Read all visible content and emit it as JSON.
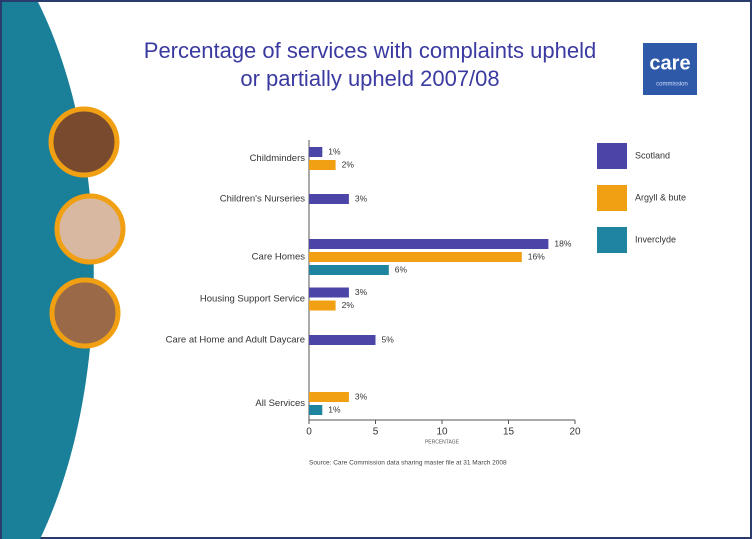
{
  "chart_data": {
    "type": "hbar",
    "title": "Percentage of services with complaints upheld or partially upheld 2007/08",
    "categories": [
      "Childminders",
      "Children's Nurseries",
      "Care Homes",
      "Housing Support Service",
      "Care at Home and Adult Daycare",
      "All Services"
    ],
    "series": [
      {
        "name": "Scotland",
        "color": "#4b45a8",
        "values": [
          1,
          3,
          18,
          3,
          5,
          null
        ],
        "value_labels": [
          "1%",
          "3%",
          "18%",
          "3%",
          "5%",
          null
        ]
      },
      {
        "name": "Argyll & bute",
        "color": "#f0a012",
        "values": [
          2,
          null,
          16,
          2,
          null,
          3
        ],
        "value_labels": [
          "2%",
          null,
          "16%",
          "2%",
          null,
          "3%"
        ]
      },
      {
        "name": "Inverclyde",
        "color": "#1e84a0",
        "values": [
          null,
          null,
          6,
          null,
          null,
          1
        ],
        "value_labels": [
          null,
          null,
          "6%",
          null,
          null,
          "1%"
        ]
      }
    ],
    "xlim": [
      0,
      20
    ],
    "xticks": [
      0,
      5,
      10,
      15,
      20
    ],
    "xlabel": "PERCENTAGE",
    "source": "Source: Care Commission data sharing master file at 31 March 2008",
    "legend": "right"
  },
  "logo": {
    "text": "care",
    "subtext": "commission"
  }
}
